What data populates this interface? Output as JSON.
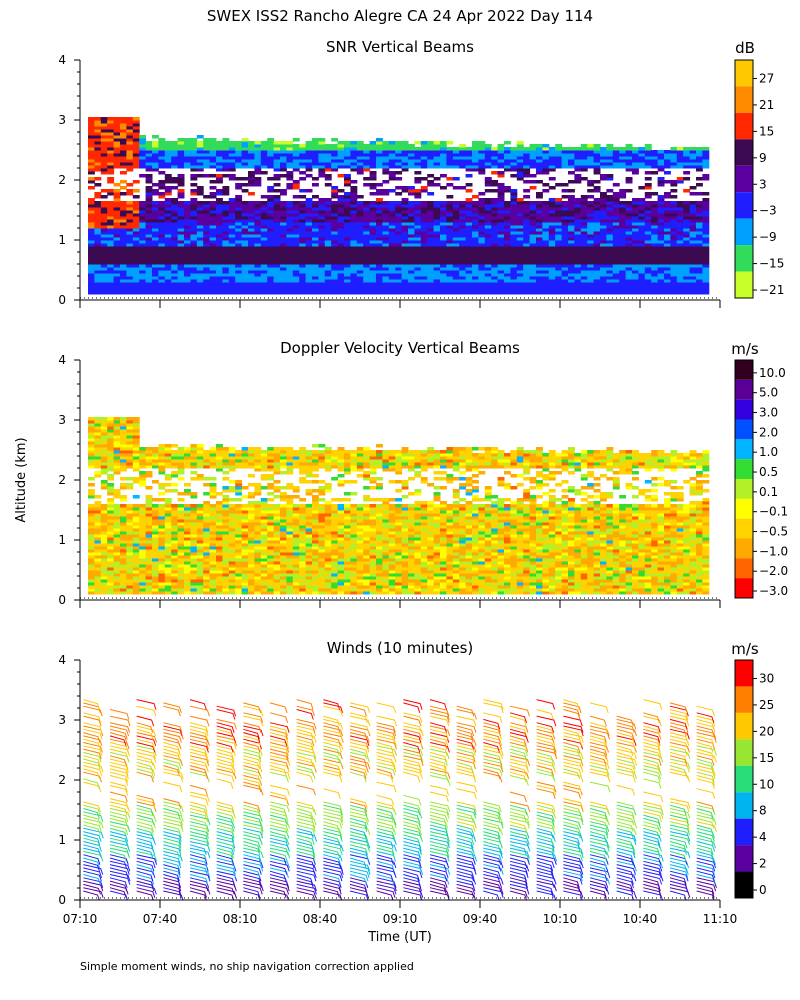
{
  "title": "SWEX ISS2 Rancho Alegre CA  24 Apr 2022 Day 114",
  "y_axis_label": "Altitude (km)",
  "x_axis_label": "Time (UT)",
  "footnote": "Simple moment winds, no ship navigation correction applied",
  "chart_data": [
    {
      "id": "snr",
      "type": "heatmap",
      "title": "SNR Vertical Beams",
      "xlabel": "",
      "ylabel": "Altitude (km)",
      "xlim": [
        0,
        240
      ],
      "ylim": [
        0,
        4
      ],
      "y_ticks": [
        "0",
        "1",
        "2",
        "3",
        "4"
      ],
      "colorbar": {
        "unit": "dB",
        "labels": [
          "27",
          "21",
          "15",
          "9",
          "3",
          "−3",
          "−9",
          "−15",
          "−21"
        ],
        "colors": [
          "#ffc800",
          "#ff8c00",
          "#ff2800",
          "#3c0a50",
          "#5a00a0",
          "#1e1eff",
          "#00a0ff",
          "#32dc5a",
          "#c8ff28"
        ]
      },
      "layers": [
        {
          "alt_range": [
            0.1,
            0.3
          ],
          "value_dB": -3
        },
        {
          "alt_range": [
            0.3,
            0.55
          ],
          "value_dB": -9
        },
        {
          "alt_range": [
            0.55,
            0.9
          ],
          "value_dB": 9
        },
        {
          "alt_range": [
            0.9,
            1.3
          ],
          "value_dB": -3
        },
        {
          "alt_range": [
            1.3,
            1.6
          ],
          "value_dB": 3
        },
        {
          "alt_range": [
            1.6,
            2.2
          ],
          "value_dB": "no data"
        },
        {
          "alt_range": [
            2.2,
            2.5
          ],
          "value_dB": -9
        },
        {
          "alt_range": [
            2.5,
            2.7
          ],
          "value_dB": -15
        }
      ]
    },
    {
      "id": "doppler",
      "type": "heatmap",
      "title": "Doppler Velocity Vertical Beams",
      "xlabel": "",
      "ylabel": "Altitude (km)",
      "xlim": [
        0,
        240
      ],
      "ylim": [
        0,
        4
      ],
      "y_ticks": [
        "0",
        "1",
        "2",
        "3",
        "4"
      ],
      "colorbar": {
        "unit": "m/s",
        "labels": [
          "10.0",
          "5.0",
          "3.0",
          "2.0",
          "1.0",
          "0.5",
          "0.1",
          "−0.1",
          "−0.5",
          "−1.0",
          "−2.0",
          "−3.0"
        ],
        "colors": [
          "#32001e",
          "#5a0096",
          "#3200dc",
          "#0050ff",
          "#00b4ff",
          "#32dc32",
          "#b4f028",
          "#ffff00",
          "#ffd200",
          "#ffaa00",
          "#ff6400",
          "#ff0000"
        ]
      },
      "dominant_range_m_per_s": [
        -1.0,
        0.5
      ]
    },
    {
      "id": "winds",
      "type": "scatter",
      "title": "Winds (10 minutes)",
      "xlabel": "Time (UT)",
      "ylabel": "Altitude (km)",
      "xlim": [
        0,
        240
      ],
      "ylim": [
        0,
        4
      ],
      "y_ticks": [
        "0",
        "1",
        "2",
        "3",
        "4"
      ],
      "x_ticks": [
        "07:10",
        "07:40",
        "08:10",
        "08:40",
        "09:10",
        "09:40",
        "10:10",
        "10:40",
        "11:10"
      ],
      "colorbar": {
        "unit": "m/s",
        "labels": [
          "30",
          "25",
          "20",
          "15",
          "10",
          "8",
          "4",
          "2",
          "0"
        ],
        "colors": [
          "#ff0000",
          "#ff8000",
          "#ffc800",
          "#96e632",
          "#28dc78",
          "#00b4f0",
          "#1e1eff",
          "#5a00a0",
          "#000000"
        ]
      },
      "profiles_minutes": [
        5,
        15,
        25,
        35,
        45,
        55,
        65,
        75,
        85,
        95,
        105,
        115,
        125,
        135,
        145,
        155,
        165,
        175,
        185,
        195,
        205,
        215,
        225,
        235
      ]
    }
  ]
}
